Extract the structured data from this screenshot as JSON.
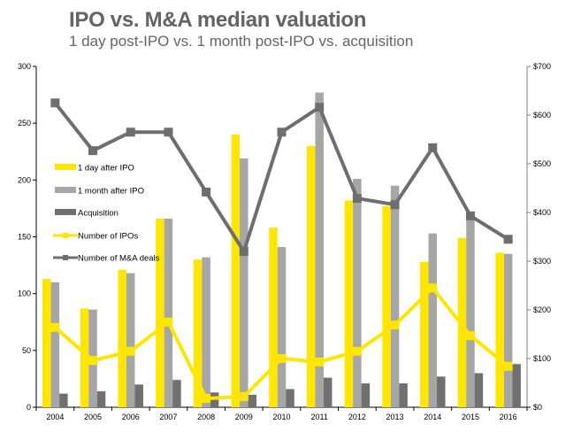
{
  "chart_data": {
    "type": "bar",
    "title": "IPO vs. M&A median valuation",
    "subtitle": "1 day post-IPO vs. 1 month post-IPO vs. acquisition",
    "categories": [
      "2004",
      "2005",
      "2006",
      "2007",
      "2008",
      "2009",
      "2010",
      "2011",
      "2012",
      "2013",
      "2014",
      "2015",
      "2016"
    ],
    "left_axis": {
      "ylim": [
        0,
        300
      ],
      "ticks": [
        "0",
        "50",
        "100",
        "150",
        "200",
        "250",
        "300"
      ],
      "tick_values": [
        0,
        50,
        100,
        150,
        200,
        250,
        300
      ]
    },
    "right_axis": {
      "ylim": [
        0,
        700
      ],
      "ticks": [
        "$0",
        "$100",
        "$200",
        "$300",
        "$400",
        "$500",
        "$600",
        "$700"
      ],
      "tick_values": [
        0,
        100,
        200,
        300,
        400,
        500,
        600,
        700
      ]
    },
    "series": [
      {
        "name": "1 day after IPO",
        "type": "bar",
        "axis": "left",
        "color": "#FFE600",
        "values": [
          113,
          87,
          121,
          166,
          130,
          240,
          158,
          230,
          182,
          177,
          128,
          149,
          136
        ]
      },
      {
        "name": "1 month after IPO",
        "type": "bar",
        "axis": "left",
        "color": "#A6A6A6",
        "values": [
          110,
          86,
          118,
          166,
          132,
          219,
          141,
          277,
          201,
          195,
          153,
          166,
          135
        ]
      },
      {
        "name": "Acquisition",
        "type": "bar",
        "axis": "left",
        "color": "#707070",
        "values": [
          12,
          14,
          20,
          24,
          13,
          11,
          16,
          26,
          21,
          21,
          27,
          30,
          38
        ]
      },
      {
        "name": "Number of IPOs",
        "type": "line",
        "axis": "right",
        "color": "#FFE600",
        "values": [
          164,
          96,
          115,
          175,
          18,
          22,
          100,
          93,
          115,
          169,
          245,
          147,
          84
        ]
      },
      {
        "name": "Number of M&A deals",
        "type": "line",
        "axis": "right",
        "color": "#6E6E6E",
        "values": [
          625,
          527,
          565,
          565,
          442,
          320,
          565,
          616,
          429,
          416,
          533,
          393,
          345
        ]
      }
    ],
    "legend": "left-inside",
    "grid": false
  }
}
